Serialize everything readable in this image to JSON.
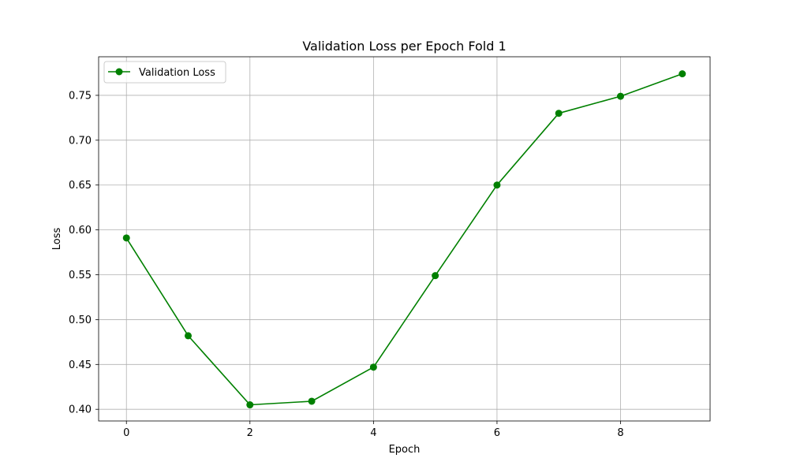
{
  "chart_data": {
    "type": "line",
    "title": "Validation Loss per Epoch Fold 1",
    "xlabel": "Epoch",
    "ylabel": "Loss",
    "x": [
      0,
      1,
      2,
      3,
      4,
      5,
      6,
      7,
      8,
      9
    ],
    "xlim": [
      -0.45,
      9.45
    ],
    "ylim": [
      0.387,
      0.793
    ],
    "xticks": [
      0,
      2,
      4,
      6,
      8
    ],
    "xtick_labels": [
      "0",
      "2",
      "4",
      "6",
      "8"
    ],
    "yticks": [
      0.4,
      0.45,
      0.5,
      0.55,
      0.6,
      0.65,
      0.7,
      0.75
    ],
    "ytick_labels": [
      "0.40",
      "0.45",
      "0.50",
      "0.55",
      "0.60",
      "0.65",
      "0.70",
      "0.75"
    ],
    "grid": true,
    "legend_position": "upper-left",
    "series": [
      {
        "name": "Validation Loss",
        "color": "#008000",
        "marker": "circle",
        "values": [
          0.591,
          0.482,
          0.405,
          0.409,
          0.447,
          0.549,
          0.65,
          0.73,
          0.749,
          0.774
        ]
      }
    ]
  }
}
